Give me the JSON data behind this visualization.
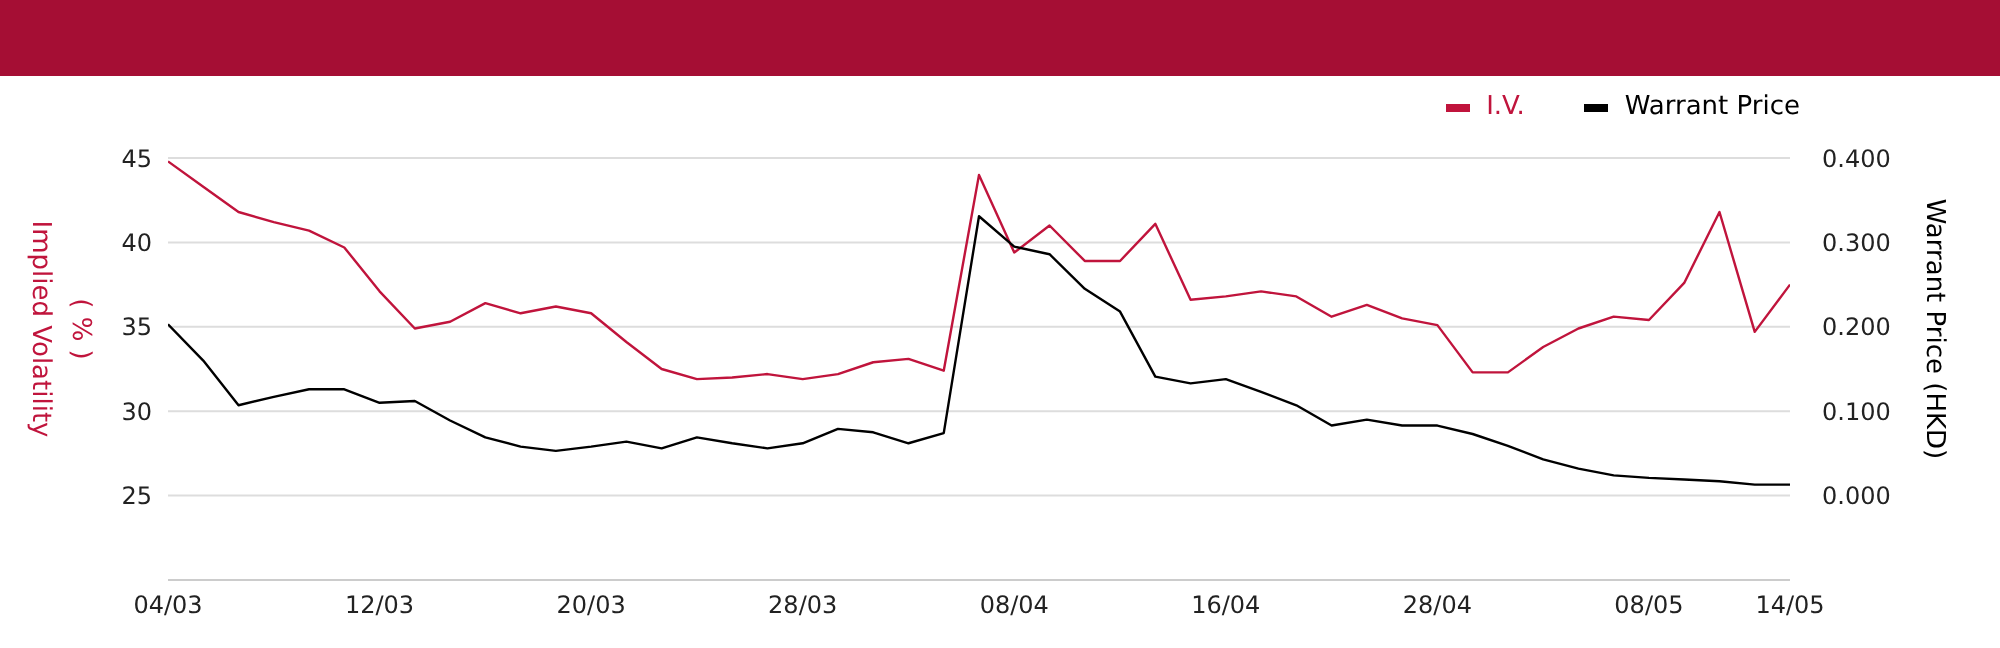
{
  "chart_data": {
    "type": "line",
    "categories": [
      "04/03",
      null,
      null,
      null,
      null,
      null,
      "12/03",
      null,
      null,
      null,
      null,
      null,
      "20/03",
      null,
      null,
      null,
      null,
      null,
      "28/03",
      null,
      null,
      null,
      null,
      null,
      "08/04",
      null,
      null,
      null,
      null,
      null,
      "16/04",
      null,
      null,
      null,
      null,
      null,
      "28/04",
      null,
      null,
      null,
      null,
      null,
      "08/05",
      null,
      null,
      null,
      "14/05"
    ],
    "series": [
      {
        "name": "I.V.",
        "color": "#c0143c",
        "axis": "y",
        "values": [
          44.8,
          43.3,
          41.8,
          41.2,
          40.7,
          39.7,
          37.1,
          34.9,
          35.3,
          36.4,
          35.8,
          36.2,
          35.8,
          34.1,
          32.5,
          31.9,
          32.0,
          32.2,
          31.9,
          32.2,
          32.9,
          33.1,
          32.4,
          44.0,
          39.4,
          41.0,
          38.9,
          38.9,
          41.1,
          36.6,
          36.8,
          37.1,
          36.8,
          35.6,
          36.3,
          35.5,
          35.1,
          32.3,
          32.3,
          33.8,
          34.9,
          35.6,
          35.4,
          37.6,
          41.8,
          34.7,
          37.5
        ]
      },
      {
        "name": "Warrant Price",
        "color": "#000000",
        "axis": "y2",
        "values": [
          0.203,
          0.16,
          0.107,
          0.117,
          0.126,
          0.126,
          0.11,
          0.112,
          0.089,
          0.069,
          0.058,
          0.053,
          0.058,
          0.064,
          0.056,
          0.069,
          0.062,
          0.056,
          0.062,
          0.079,
          0.075,
          0.062,
          0.074,
          0.331,
          0.295,
          0.286,
          0.245,
          0.218,
          0.141,
          0.133,
          0.138,
          0.123,
          0.107,
          0.083,
          0.09,
          0.083,
          0.083,
          0.073,
          0.059,
          0.043,
          0.032,
          0.024,
          0.021,
          0.019,
          0.017,
          0.013,
          0.013
        ]
      }
    ],
    "ylim": [
      20,
      45
    ],
    "yticks": [
      25,
      30,
      35,
      40,
      45
    ],
    "y2lim": [
      -0.1,
      0.4
    ],
    "y2ticks": [
      {
        "value": 0,
        "label": "0.000"
      },
      {
        "value": 0.1,
        "label": "0.100"
      },
      {
        "value": 0.2,
        "label": "0.200"
      },
      {
        "value": 0.3,
        "label": "0.300"
      },
      {
        "value": 0.4,
        "label": "0.400"
      }
    ],
    "ylabel": "Implied Volatility\n( % )",
    "y2label": "Warrant Price (HKD)",
    "legend": "top right",
    "grid": "y"
  }
}
